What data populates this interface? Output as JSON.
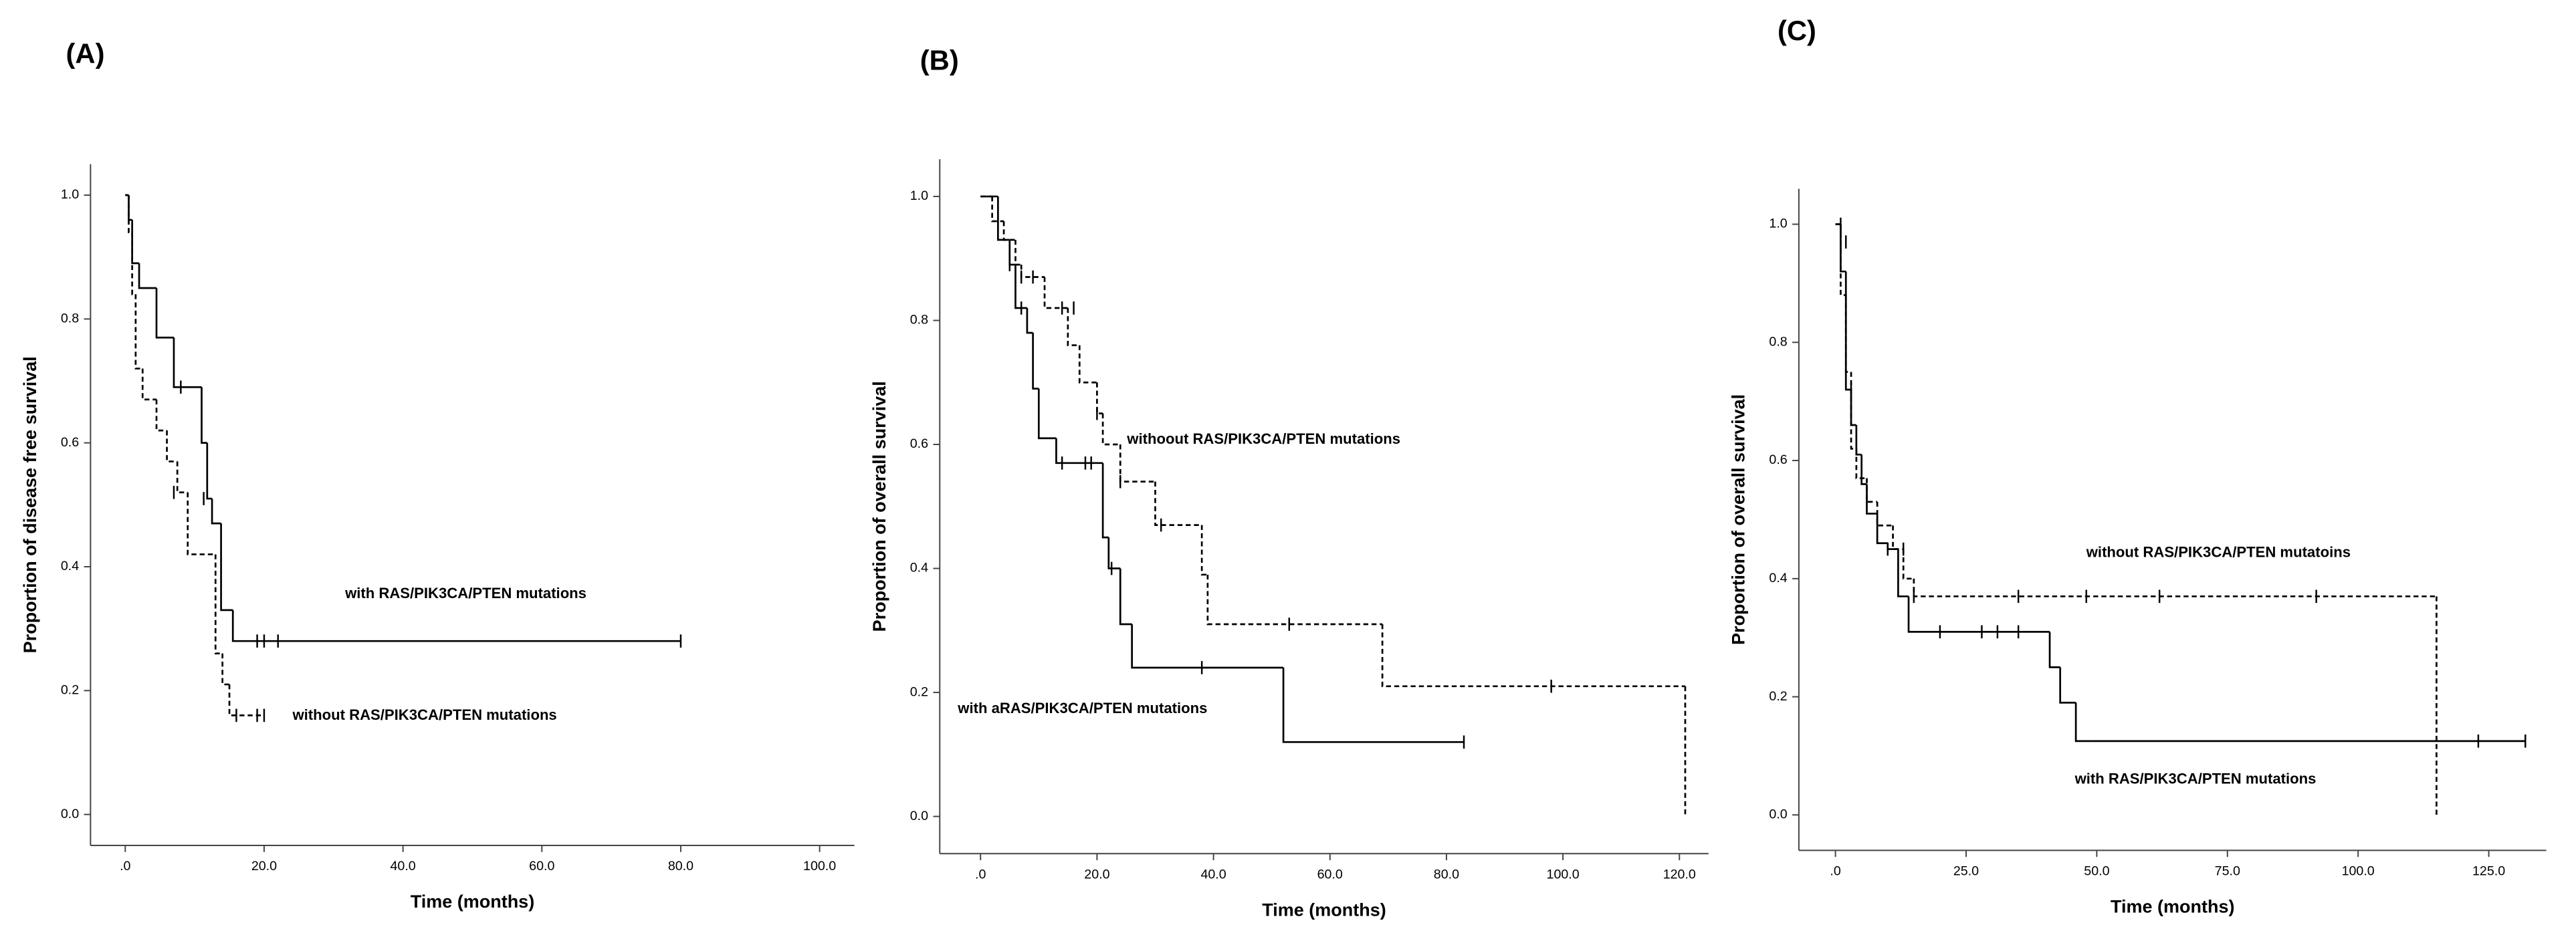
{
  "chart_data": [
    {
      "type": "line",
      "title": "(A)",
      "y_label": "Proportion of disease free survival",
      "x_label": "Time (months)",
      "xlim": [
        -5,
        105
      ],
      "ylim": [
        -0.05,
        1.05
      ],
      "xticks": [
        {
          "value": 0,
          "label": ".0"
        },
        {
          "value": 20,
          "label": "20.0"
        },
        {
          "value": 40,
          "label": "40.0"
        },
        {
          "value": 60,
          "label": "60.0"
        },
        {
          "value": 80,
          "label": "80.0"
        },
        {
          "value": 100,
          "label": "100.0"
        }
      ],
      "yticks": [
        {
          "value": 0,
          "label": "0.0"
        },
        0.2,
        0.4,
        0.6,
        0.8,
        {
          "value": 1,
          "label": "1.0"
        }
      ],
      "step": true,
      "series": [
        {
          "name": "with RAS/PIK3CA/PTEN mutations",
          "color": "#000000",
          "dashed": false,
          "x": [
            0,
            0.5,
            1,
            2,
            4.5,
            7,
            11,
            11.8,
            12.5,
            13.8,
            15.5,
            80
          ],
          "values": [
            1,
            0.96,
            0.89,
            0.85,
            0.77,
            0.69,
            0.6,
            0.51,
            0.47,
            0.33,
            0.28,
            0.28
          ],
          "censored": {
            "x": [
              8,
              11.3,
              19,
              20,
              22,
              80
            ],
            "values": [
              0.69,
              0.51,
              0.28,
              0.28,
              0.28,
              0.28
            ]
          }
        },
        {
          "name": "without RAS/PIK3CA/PTEN mutations",
          "color": "#000000",
          "dashed": true,
          "x": [
            0,
            0.5,
            1,
            1.5,
            2.5,
            4.5,
            6,
            7.5,
            9,
            13,
            14,
            15,
            20
          ],
          "values": [
            1,
            0.94,
            0.84,
            0.72,
            0.67,
            0.62,
            0.57,
            0.52,
            0.42,
            0.26,
            0.21,
            0.16,
            0.16
          ],
          "censored": {
            "x": [
              7,
              16,
              19,
              20
            ],
            "values": [
              0.52,
              0.16,
              0.16,
              0.16
            ]
          }
        }
      ]
    },
    {
      "type": "line",
      "title": "(B)",
      "y_label": "Proportion of overall survival",
      "x_label": "Time (months)",
      "xlim": [
        -7,
        125
      ],
      "ylim": [
        -0.06,
        1.06
      ],
      "xticks": [
        {
          "value": 0,
          "label": ".0"
        },
        {
          "value": 20,
          "label": "20.0"
        },
        {
          "value": 40,
          "label": "40.0"
        },
        {
          "value": 60,
          "label": "60.0"
        },
        {
          "value": 80,
          "label": "80.0"
        },
        {
          "value": 100,
          "label": "100.0"
        },
        {
          "value": 120,
          "label": "120.0"
        }
      ],
      "yticks": [
        {
          "value": 0,
          "label": "0.0"
        },
        0.2,
        0.4,
        0.6,
        0.8,
        {
          "value": 1,
          "label": "1.0"
        }
      ],
      "step": true,
      "series": [
        {
          "name": "withoout RAS/PIK3CA/PTEN mutations",
          "color": "#000000",
          "dashed": true,
          "x": [
            0,
            2,
            4,
            6,
            7,
            11,
            15,
            17,
            20,
            21,
            24,
            30,
            38,
            39,
            69,
            121,
            121
          ],
          "values": [
            1,
            0.96,
            0.93,
            0.89,
            0.87,
            0.82,
            0.76,
            0.7,
            0.65,
            0.6,
            0.54,
            0.47,
            0.39,
            0.31,
            0.21,
            0.21,
            0
          ],
          "censored": {
            "x": [
              5,
              7,
              9,
              14,
              16,
              20,
              24,
              31,
              53,
              98
            ],
            "values": [
              0.89,
              0.87,
              0.87,
              0.82,
              0.82,
              0.65,
              0.54,
              0.47,
              0.31,
              0.21
            ]
          }
        },
        {
          "name": "with aRAS/PIK3CA/PTEN mutations",
          "color": "#000000",
          "dashed": false,
          "x": [
            0,
            3,
            5,
            6,
            8,
            9,
            10,
            13,
            21,
            22,
            24,
            26,
            52,
            83
          ],
          "values": [
            1,
            0.93,
            0.89,
            0.82,
            0.78,
            0.69,
            0.61,
            0.57,
            0.45,
            0.4,
            0.31,
            0.24,
            0.12,
            0.12
          ],
          "censored": {
            "x": [
              7,
              14,
              18,
              19,
              22.5,
              38,
              83
            ],
            "values": [
              0.82,
              0.57,
              0.57,
              0.57,
              0.4,
              0.24,
              0.12
            ]
          }
        }
      ]
    },
    {
      "type": "line",
      "title": "(C)",
      "y_label": "Proportion of overall survival",
      "x_label": "Time (months)",
      "xlim": [
        -7,
        136
      ],
      "ylim": [
        -0.06,
        1.06
      ],
      "xticks": [
        {
          "value": 0,
          "label": ".0"
        },
        {
          "value": 25,
          "label": "25.0"
        },
        {
          "value": 50,
          "label": "50.0"
        },
        {
          "value": 75,
          "label": "75.0"
        },
        {
          "value": 100,
          "label": "100.0"
        },
        {
          "value": 125,
          "label": "125.0"
        }
      ],
      "yticks": [
        {
          "value": 0,
          "label": "0.0"
        },
        0.2,
        0.4,
        0.6,
        0.8,
        {
          "value": 1,
          "label": "1.0"
        }
      ],
      "step": true,
      "series": [
        {
          "name": "without RAS/PIK3CA/PTEN mutatoins",
          "color": "#000000",
          "dashed": true,
          "x": [
            0,
            1,
            2,
            3,
            4,
            6,
            8,
            11,
            13,
            15,
            115,
            115
          ],
          "values": [
            1,
            0.88,
            0.75,
            0.62,
            0.57,
            0.53,
            0.49,
            0.45,
            0.4,
            0.37,
            0.37,
            0
          ],
          "censored": {
            "x": [
              2,
              15,
              35,
              48,
              62,
              92
            ],
            "values": [
              0.97,
              0.37,
              0.37,
              0.37,
              0.37,
              0.37
            ]
          }
        },
        {
          "name": "with RAS/PIK3CA/PTEN mutations",
          "color": "#000000",
          "dashed": false,
          "x": [
            0,
            1,
            2,
            3,
            4,
            5,
            6,
            8,
            10,
            12,
            14,
            41,
            43,
            46,
            49,
            132
          ],
          "values": [
            1,
            0.92,
            0.72,
            0.66,
            0.61,
            0.56,
            0.51,
            0.46,
            0.45,
            0.37,
            0.31,
            0.25,
            0.19,
            0.125,
            0.125,
            0.125
          ],
          "censored": {
            "x": [
              1,
              3,
              10,
              13,
              20,
              28,
              31,
              35,
              123,
              132
            ],
            "values": [
              1,
              0.72,
              0.45,
              0.45,
              0.31,
              0.31,
              0.31,
              0.31,
              0.125,
              0.125
            ]
          }
        }
      ]
    }
  ]
}
